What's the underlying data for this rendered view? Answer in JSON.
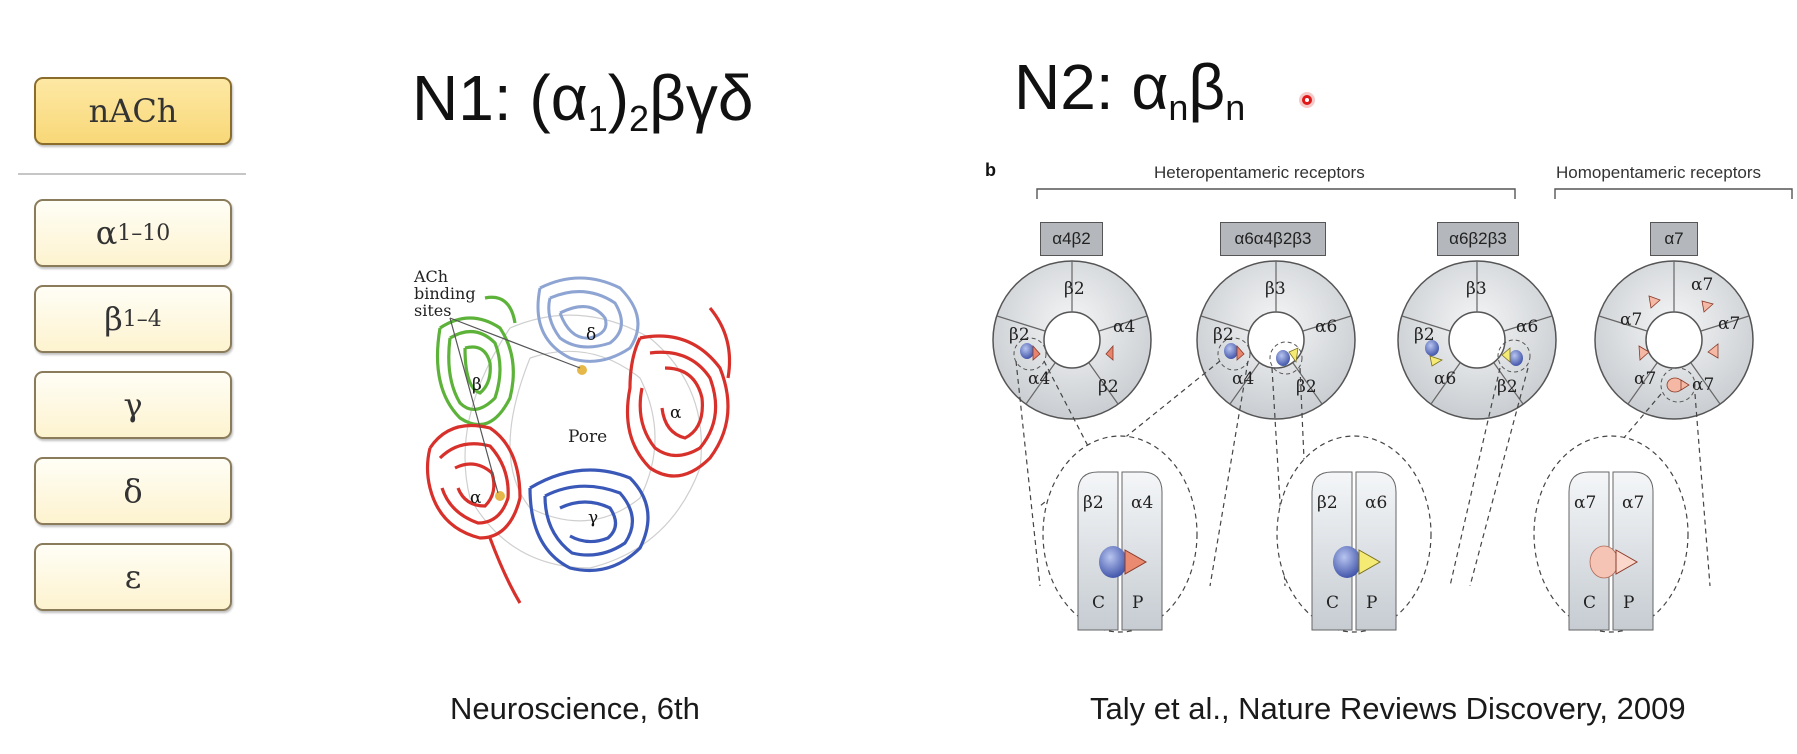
{
  "sidebar": {
    "header_label": "nACh",
    "subunits": [
      {
        "base": "α",
        "sub": "1–10"
      },
      {
        "base": "β",
        "sub": "1–4"
      },
      {
        "base": "γ",
        "sub": ""
      },
      {
        "base": "δ",
        "sub": ""
      },
      {
        "base": "ε",
        "sub": ""
      }
    ]
  },
  "left_figure": {
    "title_prefix": "N1: (α",
    "title_sub1": "1",
    "title_mid": ")",
    "title_sub2": "2",
    "title_suffix": "βγδ",
    "annotation": "ACh binding sites",
    "pore_label": "Pore",
    "subunit_labels": [
      "δ",
      "β",
      "α",
      "α",
      "γ"
    ],
    "caption": "Neuroscience, 6th",
    "colors": {
      "alpha": "#d8302a",
      "beta": "#5db23a",
      "gamma": "#3a58b8",
      "delta": "#8ea4d2"
    }
  },
  "right_figure": {
    "title_prefix": "N2: α",
    "title_sub1": "n",
    "title_mid": "β",
    "title_sub2": "n",
    "panel_letter": "b",
    "group_hetero": "Heteropentameric receptors",
    "group_homo": "Homopentameric receptors",
    "receptors": [
      {
        "name": "α4β2",
        "subunits": [
          "β2",
          "α4",
          "β2",
          "α4",
          "β2"
        ]
      },
      {
        "name": "α6α4β2β3",
        "subunits": [
          "β3",
          "α6",
          "β2",
          "α4",
          "β2"
        ]
      },
      {
        "name": "α6β2β3",
        "subunits": [
          "β3",
          "α6",
          "β2",
          "α6",
          "β2"
        ]
      },
      {
        "name": "α7",
        "subunits": [
          "α7",
          "α7",
          "α7",
          "α7",
          "α7"
        ]
      }
    ],
    "zooms": [
      {
        "left": "β2",
        "right": "α4",
        "c": "C",
        "p": "P"
      },
      {
        "left": "β2",
        "right": "α6",
        "c": "C",
        "p": "P"
      },
      {
        "left": "α7",
        "right": "α7",
        "c": "C",
        "p": "P"
      }
    ],
    "caption": "Taly et al., Nature Reviews Discovery, 2009"
  }
}
